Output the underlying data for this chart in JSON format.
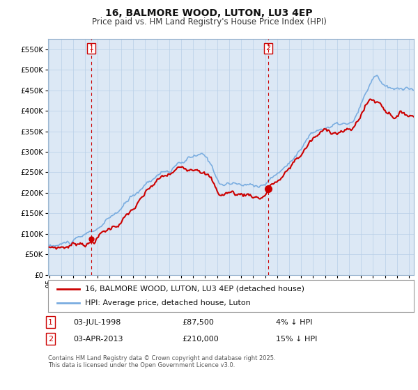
{
  "title": "16, BALMORE WOOD, LUTON, LU3 4EP",
  "subtitle": "Price paid vs. HM Land Registry's House Price Index (HPI)",
  "ylim": [
    0,
    575000
  ],
  "yticks": [
    0,
    50000,
    100000,
    150000,
    200000,
    250000,
    300000,
    350000,
    400000,
    450000,
    500000,
    550000
  ],
  "ytick_labels": [
    "£0",
    "£50K",
    "£100K",
    "£150K",
    "£200K",
    "£250K",
    "£300K",
    "£350K",
    "£400K",
    "£450K",
    "£500K",
    "£550K"
  ],
  "hpi_color": "#7aade0",
  "price_color": "#cc0000",
  "marker1_x": 1998.5,
  "marker1_y": 87500,
  "marker1_label": "1",
  "marker2_x": 2013.25,
  "marker2_y": 210000,
  "marker2_label": "2",
  "background_color": "#dce8f5",
  "plot_background": "#ffffff",
  "grid_color": "#b8cfe8",
  "legend_label_price": "16, BALMORE WOOD, LUTON, LU3 4EP (detached house)",
  "legend_label_hpi": "HPI: Average price, detached house, Luton",
  "annotation1": [
    "1",
    "03-JUL-1998",
    "£87,500",
    "4% ↓ HPI"
  ],
  "annotation2": [
    "2",
    "03-APR-2013",
    "£210,000",
    "15% ↓ HPI"
  ],
  "footer": "Contains HM Land Registry data © Crown copyright and database right 2025.\nThis data is licensed under the Open Government Licence v3.0.",
  "xlim_left": 1994.9,
  "xlim_right": 2025.4
}
